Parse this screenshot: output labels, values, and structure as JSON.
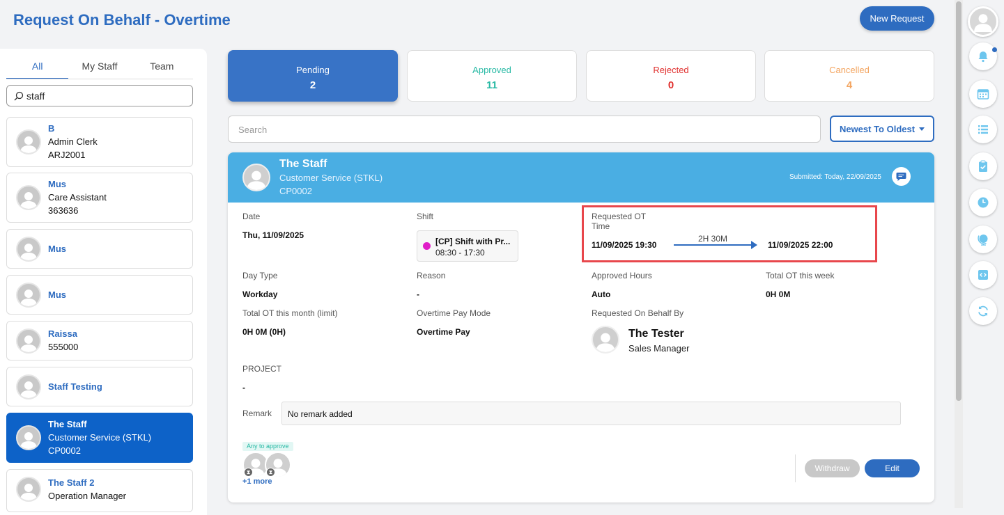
{
  "page": {
    "title": "Request On Behalf - Overtime",
    "new_request_label": "New Request"
  },
  "left_tabs": [
    "All",
    "My Staff",
    "Team"
  ],
  "staff_search": {
    "value": "staff"
  },
  "staff": [
    {
      "name": "B",
      "line2": "Admin Clerk",
      "line3": "ARJ2001"
    },
    {
      "name": "Mus",
      "line2": "Care Assistant",
      "line3": "363636"
    },
    {
      "name": "Mus",
      "line2": "",
      "line3": ""
    },
    {
      "name": "Mus",
      "line2": "",
      "line3": ""
    },
    {
      "name": "Raissa",
      "line2": "555000",
      "line3": ""
    },
    {
      "name": "Staff Testing",
      "line2": "",
      "line3": ""
    },
    {
      "name": "The Staff",
      "line2": "Customer Service (STKL)",
      "line3": "CP0002"
    },
    {
      "name": "The Staff 2",
      "line2": "Operation Manager",
      "line3": ""
    }
  ],
  "status_tabs": [
    {
      "label": "Pending",
      "count": "2",
      "color": "#ffffff"
    },
    {
      "label": "Approved",
      "count": "11",
      "color": "#27b9a4"
    },
    {
      "label": "Rejected",
      "count": "0",
      "color": "#e0302e"
    },
    {
      "label": "Cancelled",
      "count": "4",
      "color": "#f3a45f"
    }
  ],
  "main_search": {
    "placeholder": "Search"
  },
  "sort": {
    "label": "Newest To Oldest"
  },
  "request": {
    "name": "The Staff",
    "dept": "Customer Service (STKL)",
    "code": "CP0002",
    "submitted": "Submitted: Today, 22/09/2025",
    "date_label": "Date",
    "date_value": "Thu, 11/09/2025",
    "shift_label": "Shift",
    "shift_name": "[CP] Shift with Pr...",
    "shift_time": "08:30 - 17:30",
    "ot_label": "Requested OT Time",
    "ot_from": "11/09/2025 19:30",
    "ot_duration": "2H 30M",
    "ot_to": "11/09/2025 22:00",
    "day_type_label": "Day Type",
    "day_type_value": "Workday",
    "reason_label": "Reason",
    "reason_value": "-",
    "approved_hours_label": "Approved Hours",
    "approved_hours_value": "Auto",
    "total_week_label": "Total OT this week",
    "total_week_value": "0H 0M",
    "total_month_label": "Total OT this month (limit)",
    "total_month_value": "0H 0M (0H)",
    "pay_mode_label": "Overtime Pay Mode",
    "pay_mode_value": "Overtime Pay",
    "behalf_label": "Requested On Behalf By",
    "behalf_name": "The Tester",
    "behalf_title": "Sales Manager",
    "project_label": "PROJECT",
    "project_value": "-",
    "remark_label": "Remark",
    "remark_value": "No remark added",
    "approve_badge": "Any to approve",
    "more_approvers": "+1 more",
    "withdraw_label": "Withdraw",
    "edit_label": "Edit"
  },
  "right_rail": [
    "user-avatar-icon",
    "bell-icon",
    "calendar-icon",
    "list-icon",
    "clipboard-check-icon",
    "clock-icon",
    "globe-icon",
    "code-window-icon",
    "refresh-icon"
  ]
}
